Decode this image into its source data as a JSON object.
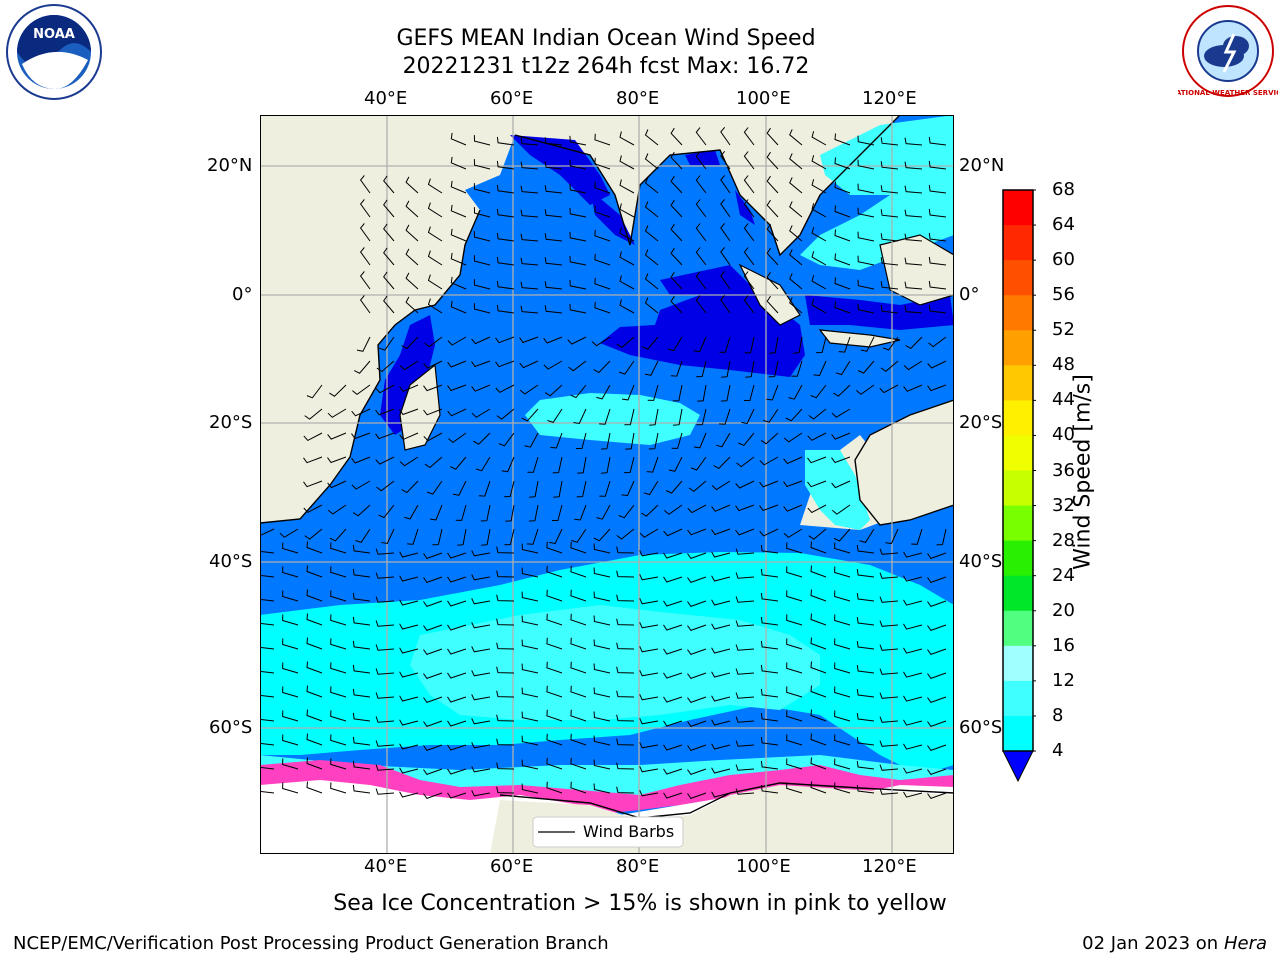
{
  "header": {
    "title_line1": "GEFS MEAN Indian Ocean Wind Speed",
    "title_line2": "20221231 t12z 264h fcst   Max: 16.72"
  },
  "logos": {
    "left": {
      "text": "NOAA",
      "icon": "noaa-logo-icon"
    },
    "right": {
      "text": "NATIONAL WEATHER SERVICE",
      "icon": "nws-logo-icon"
    }
  },
  "map": {
    "top_lon_labels": [
      "40°E",
      "60°E",
      "80°E",
      "100°E",
      "120°E"
    ],
    "bottom_lon_labels": [
      "40°E",
      "60°E",
      "80°E",
      "100°E",
      "120°E"
    ],
    "left_lat_labels": [
      "20°N",
      "0°",
      "20°S",
      "40°S",
      "60°S"
    ],
    "right_lat_labels": [
      "20°N",
      "0°",
      "20°S",
      "40°S",
      "60°S"
    ],
    "legend_label": "Wind Barbs",
    "colors": {
      "land": "#efefdf",
      "ocean_4_8": "#0078ff",
      "ocean_0_4": "#0000e6",
      "ocean_8_12": "#00ffff",
      "ocean_12_16": "#40ffff",
      "ice": "#ff40c0"
    }
  },
  "colorbar": {
    "label": "Wind Speed [m/s]",
    "ticks": [
      "68",
      "64",
      "60",
      "56",
      "52",
      "48",
      "44",
      "40",
      "36",
      "32",
      "28",
      "24",
      "20",
      "16",
      "12",
      "8",
      "4"
    ],
    "colors": [
      "#ff0000",
      "#ff2800",
      "#ff5000",
      "#ff7800",
      "#ffa000",
      "#ffc800",
      "#fff000",
      "#f0ff00",
      "#c8ff00",
      "#78ff00",
      "#28f000",
      "#00e628",
      "#50ff80",
      "#a0ffff",
      "#40ffff",
      "#00ffff",
      "#0078ff"
    ],
    "under_color": "#0000ff"
  },
  "notes": {
    "sea_ice": "Sea Ice Concentration > 15% is shown in pink to yellow",
    "footer_left": "NCEP/EMC/Verification Post Processing Product Generation Branch",
    "footer_right_prefix": "02 Jan 2023 on ",
    "footer_right_host": "Hera"
  }
}
